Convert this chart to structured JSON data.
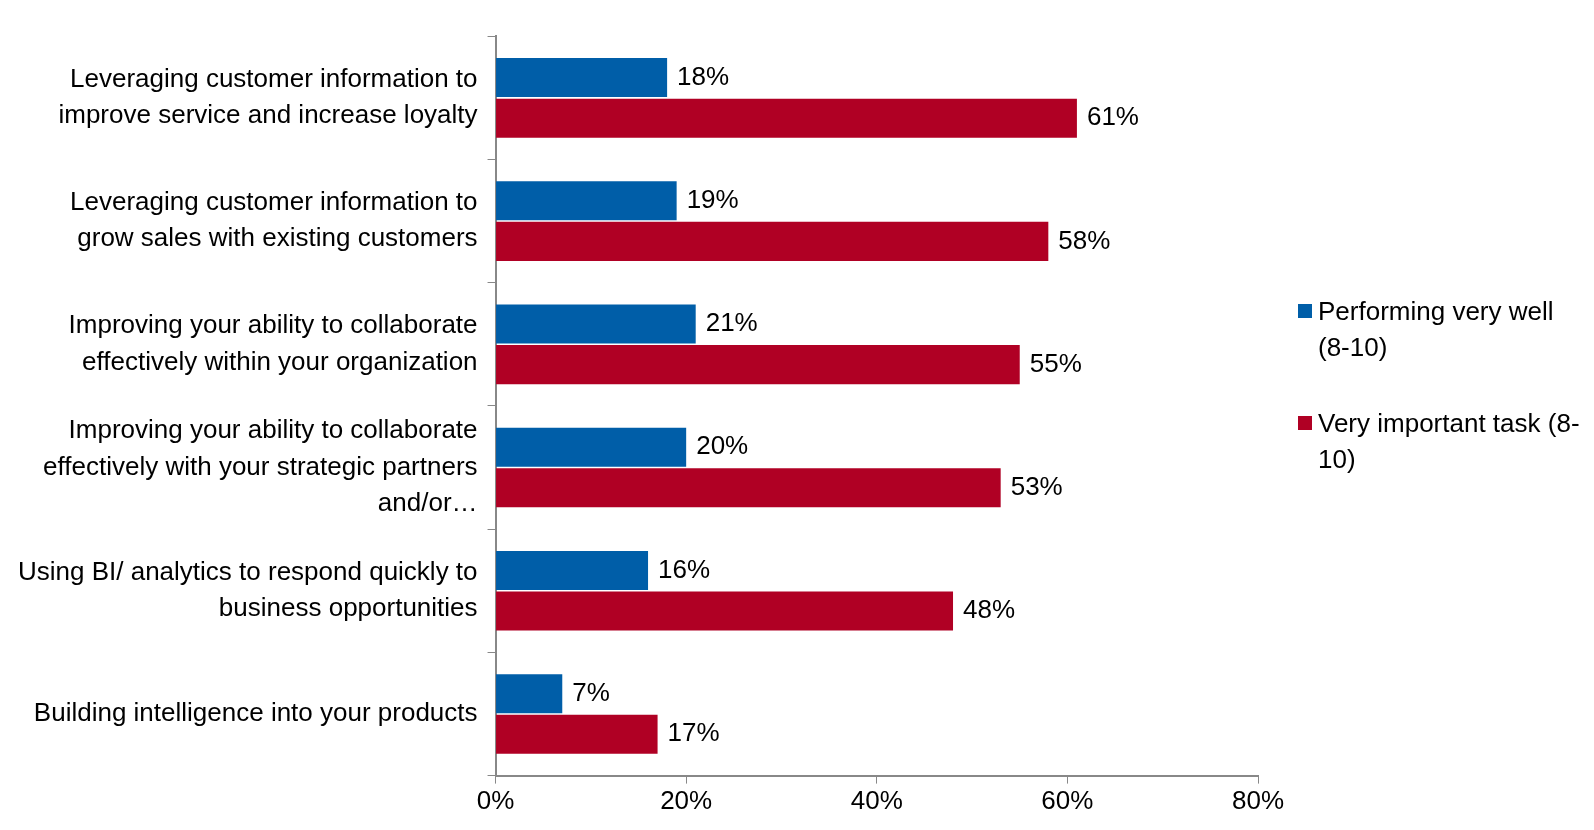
{
  "chart_data": {
    "type": "bar",
    "orientation": "horizontal",
    "categories": [
      "Leveraging customer information to improve service and increase loyalty",
      "Leveraging customer information to grow sales with existing customers",
      "Improving your ability to collaborate effectively within your organization",
      "Improving your ability to collaborate effectively with your strategic partners and/or…",
      "Using BI/ analytics to respond quickly to business opportunities",
      "Building intelligence into your products"
    ],
    "series": [
      {
        "name": "Performing very well (8-10)",
        "color": "#005ea8",
        "values": [
          18,
          19,
          21,
          20,
          16,
          7
        ],
        "value_labels": [
          "18%",
          "19%",
          "21%",
          "20%",
          "16%",
          "7%"
        ]
      },
      {
        "name": "Very important task (8-10)",
        "color": "#b00024",
        "values": [
          61,
          58,
          55,
          53,
          48,
          17
        ],
        "value_labels": [
          "61%",
          "58%",
          "55%",
          "53%",
          "48%",
          "17%"
        ]
      }
    ],
    "xlim": [
      0,
      80
    ],
    "xticks": [
      {
        "value": 0,
        "label": "0%"
      },
      {
        "value": 20,
        "label": "20%"
      },
      {
        "value": 40,
        "label": "40%"
      },
      {
        "value": 60,
        "label": "60%"
      },
      {
        "value": 80,
        "label": "80%"
      }
    ],
    "grid": false,
    "legend": "right"
  }
}
